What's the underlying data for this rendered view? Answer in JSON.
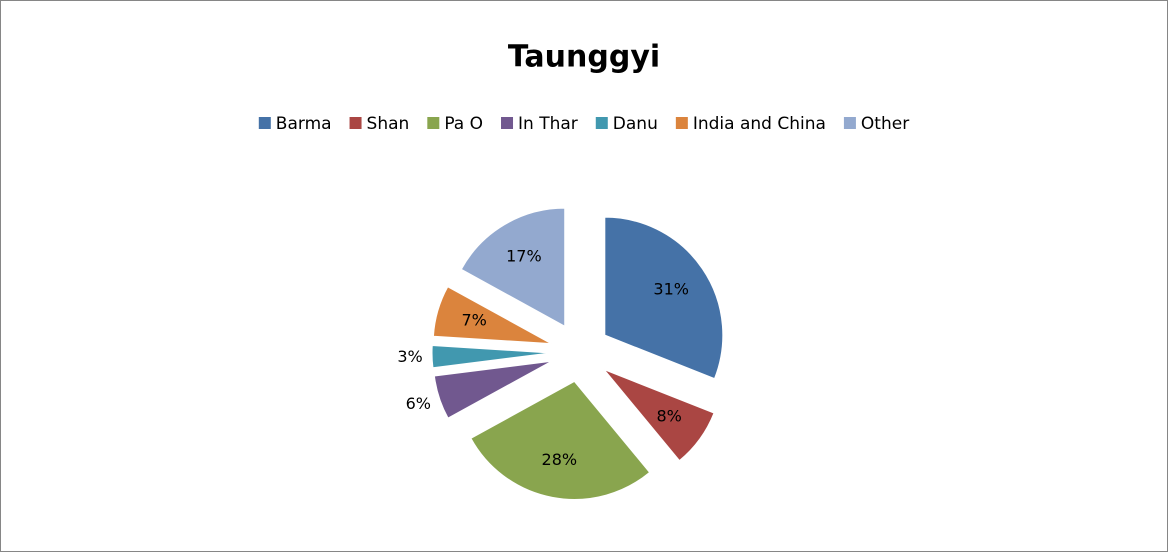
{
  "chart_data": {
    "type": "pie",
    "title": "Taunggyi",
    "categories": [
      "Barma",
      "Shan",
      "Pa O",
      "In Thar",
      "Danu",
      "India and China",
      "Other"
    ],
    "values": [
      31,
      8,
      28,
      6,
      3,
      7,
      17
    ],
    "value_labels": [
      "31%",
      "8%",
      "28%",
      "6%",
      "3%",
      "7%",
      "17%"
    ],
    "colors": [
      "#4572a7",
      "#aa4643",
      "#89a54e",
      "#71588f",
      "#4198af",
      "#db843d",
      "#93a9cf"
    ],
    "legend": "top",
    "exploded": true
  }
}
